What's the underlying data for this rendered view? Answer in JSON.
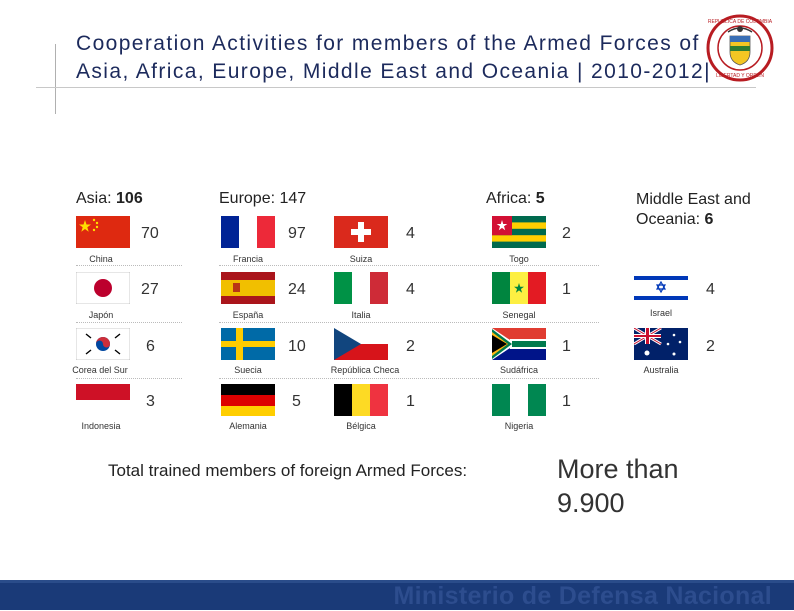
{
  "title": "Cooperation Activities for members of the Armed Forces of Asia, Africa, Europe, Middle East and Oceania | 2010-2012|",
  "seal": {
    "top_text": "REPUBLICA DE COLOMBIA",
    "bottom_text": "LIBERTAD Y ORDEN"
  },
  "regions": {
    "asia": {
      "label": "Asia: ",
      "total": "106"
    },
    "europe": {
      "label": "Europe: 147"
    },
    "africa": {
      "label": "Africa: ",
      "total": "5"
    },
    "mideast": {
      "label": "Middle East and Oceania: ",
      "total": "6"
    }
  },
  "countries": {
    "china": {
      "name": "China",
      "count": "70"
    },
    "japon": {
      "name": "Japón",
      "count": "27"
    },
    "corea": {
      "name": "Corea del Sur",
      "count": "6"
    },
    "indonesia": {
      "name": "Indonesia",
      "count": "3"
    },
    "francia": {
      "name": "Francia",
      "count": "97"
    },
    "espana": {
      "name": "España",
      "count": "24"
    },
    "suecia": {
      "name": "Suecia",
      "count": "10"
    },
    "alemania": {
      "name": "Alemania",
      "count": "5"
    },
    "suiza": {
      "name": "Suiza",
      "count": "4"
    },
    "italia": {
      "name": "Italia",
      "count": "4"
    },
    "rcheca": {
      "name": "República Checa",
      "count": "2"
    },
    "belgica": {
      "name": "Bélgica",
      "count": "1"
    },
    "togo": {
      "name": "Togo",
      "count": "2"
    },
    "senegal": {
      "name": "Senegal",
      "count": "1"
    },
    "sudafrica": {
      "name": "Sudáfrica",
      "count": "1"
    },
    "nigeria": {
      "name": "Nigeria",
      "count": "1"
    },
    "israel": {
      "name": "Israel",
      "count": "4"
    },
    "australia": {
      "name": "Australia",
      "count": "2"
    }
  },
  "total": {
    "label": "Total trained members of foreign Armed Forces:",
    "value": "More than 9.900"
  },
  "footer": {
    "text": "Ministerio de Defensa Nacional"
  },
  "colors": {
    "title": "#1c2a5c",
    "footer": "#1a3a78"
  }
}
